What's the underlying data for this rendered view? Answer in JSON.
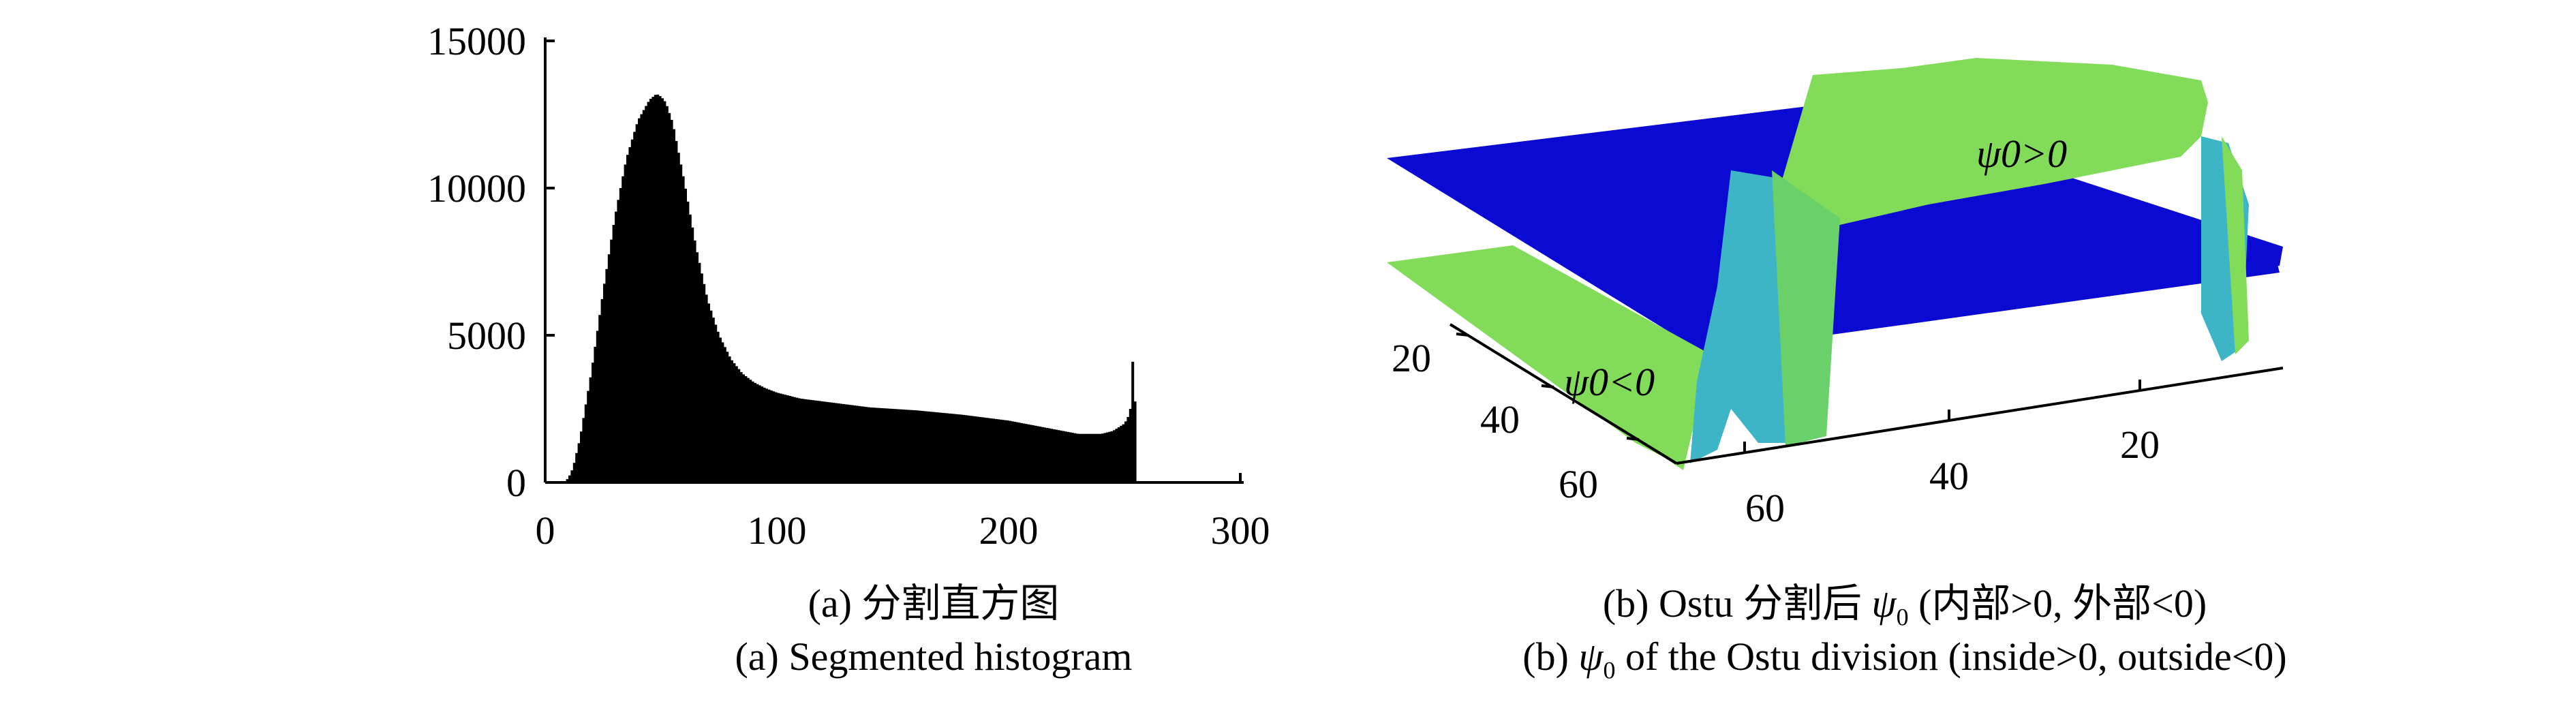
{
  "panel_a": {
    "caption_cn": "(a) 分割直方图",
    "caption_en": "(a) Segmented histogram"
  },
  "panel_b": {
    "caption_cn_prefix": "(b) Ostu 分割后 ",
    "caption_cn_symbol": "ψ",
    "caption_cn_sub": "0",
    "caption_cn_suffix": " (内部>0, 外部<0)",
    "caption_en_prefix": "(b) ",
    "caption_en_symbol": "ψ",
    "caption_en_sub": "0",
    "caption_en_suffix": " of the Ostu division (inside>0, outside<0)",
    "label_pos": "ψ0>0",
    "label_neg": "ψ0<0",
    "axis1_ticks": [
      "20",
      "40",
      "60"
    ],
    "axis2_ticks": [
      "60",
      "40",
      "20"
    ],
    "colors": {
      "negative_plane": "#0a0ad2",
      "positive_surface": "#82dc5a",
      "transition": "#2aa8c8"
    }
  },
  "chart_data": [
    {
      "type": "bar",
      "title": "",
      "xlabel": "",
      "ylabel": "",
      "xlim": [
        0,
        300
      ],
      "ylim": [
        0,
        15000
      ],
      "x_ticks": [
        0,
        100,
        200,
        300
      ],
      "y_ticks": [
        0,
        5000,
        10000,
        15000
      ],
      "grid": false,
      "bar_color": "#000000",
      "x": [
        8,
        10,
        12,
        15,
        20,
        25,
        30,
        35,
        40,
        45,
        48,
        50,
        52,
        55,
        60,
        65,
        70,
        75,
        80,
        85,
        90,
        95,
        100,
        105,
        110,
        120,
        140,
        160,
        180,
        200,
        210,
        220,
        230,
        240,
        245,
        250,
        252,
        253,
        254,
        255
      ],
      "values": [
        0,
        150,
        500,
        1500,
        3800,
        6500,
        9000,
        11000,
        12300,
        13000,
        13200,
        13100,
        12900,
        12200,
        10200,
        8000,
        6200,
        5000,
        4200,
        3700,
        3400,
        3200,
        3050,
        2950,
        2850,
        2750,
        2550,
        2450,
        2300,
        2100,
        1950,
        1800,
        1650,
        1650,
        1750,
        2000,
        2300,
        2700,
        5500,
        0
      ]
    },
    {
      "type": "surface3d",
      "title": "",
      "series": [
        {
          "name": "ψ0>0",
          "color": "#82dc5a"
        },
        {
          "name": "ψ0<0",
          "color": "#0a0ad2"
        }
      ],
      "axis1_ticks": [
        20,
        40,
        60
      ],
      "axis2_ticks": [
        60,
        40,
        20
      ]
    }
  ]
}
